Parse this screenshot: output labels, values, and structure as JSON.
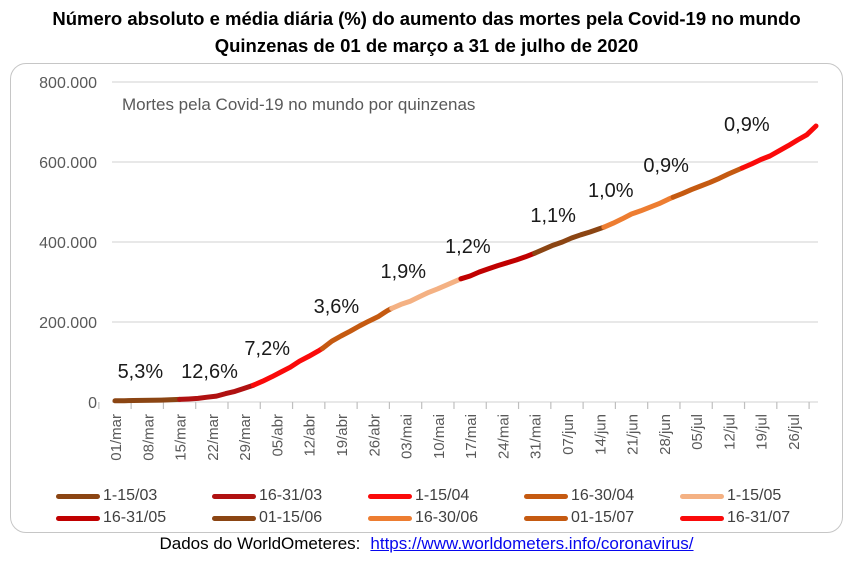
{
  "page": {
    "title_line1": "Número absoluto e média diária (%) do aumento das mortes pela Covid-19 no mundo",
    "title_line2": "Quinzenas de 01 de março a 31 de julho de 2020",
    "footer": {
      "prefix": "Dados do WorldOmeteres:",
      "link_text": "https://www.worldometers.info/coronavirus/"
    }
  },
  "chart_data": {
    "type": "line",
    "title": "Mortes pela Covid-19 no mundo por quinzenas",
    "xlabel": "",
    "ylabel": "",
    "ylim": [
      0,
      800000
    ],
    "grid": true,
    "legend_position": "bottom",
    "colors": {
      "grid": "#D9D9D9",
      "tick": "#BFBFBF",
      "axis_text": "#595959",
      "pct_label_text": "#1A1A1A"
    },
    "y_ticks": [
      {
        "value": 800000,
        "label": "800.000"
      },
      {
        "value": 600000,
        "label": "600.000"
      },
      {
        "value": 400000,
        "label": "400.000"
      },
      {
        "value": 200000,
        "label": "200.000"
      },
      {
        "value": 0,
        "label": "0"
      }
    ],
    "x_ticks": [
      {
        "day": 0,
        "label": "01/mar"
      },
      {
        "day": 7,
        "label": "08/mar"
      },
      {
        "day": 14,
        "label": "15/mar"
      },
      {
        "day": 21,
        "label": "22/mar"
      },
      {
        "day": 28,
        "label": "29/mar"
      },
      {
        "day": 35,
        "label": "05/abr"
      },
      {
        "day": 42,
        "label": "12/abr"
      },
      {
        "day": 49,
        "label": "19/abr"
      },
      {
        "day": 56,
        "label": "26/abr"
      },
      {
        "day": 63,
        "label": "03/mai"
      },
      {
        "day": 70,
        "label": "10/mai"
      },
      {
        "day": 77,
        "label": "17/mai"
      },
      {
        "day": 84,
        "label": "24/mai"
      },
      {
        "day": 91,
        "label": "31/mai"
      },
      {
        "day": 98,
        "label": "07/jun"
      },
      {
        "day": 105,
        "label": "14/jun"
      },
      {
        "day": 112,
        "label": "21/jun"
      },
      {
        "day": 119,
        "label": "28/jun"
      },
      {
        "day": 126,
        "label": "05/jul"
      },
      {
        "day": 133,
        "label": "12/jul"
      },
      {
        "day": 140,
        "label": "19/jul"
      },
      {
        "day": 147,
        "label": "26/jul"
      }
    ],
    "series": [
      {
        "name": "1-15/03",
        "color": "#8B4513",
        "avg_daily_pct": "5,3%",
        "pct_anchor": [
          5.5,
          60000
        ],
        "points": [
          [
            0,
            3050
          ],
          [
            2,
            3350
          ],
          [
            4,
            3650
          ],
          [
            6,
            3900
          ],
          [
            8,
            4300
          ],
          [
            10,
            4750
          ],
          [
            12,
            5400
          ],
          [
            14,
            6500
          ]
        ]
      },
      {
        "name": "16-31/03",
        "color": "#B01111",
        "avg_daily_pct": "12,6%",
        "pct_anchor": [
          20.5,
          60000
        ],
        "points": [
          [
            14,
            6500
          ],
          [
            16,
            7500
          ],
          [
            18,
            9000
          ],
          [
            20,
            12000
          ],
          [
            22,
            14700
          ],
          [
            24,
            21000
          ],
          [
            26,
            26500
          ],
          [
            28,
            33900
          ],
          [
            30,
            42100
          ]
        ]
      },
      {
        "name": "1-15/04",
        "color": "#FA0A0A",
        "avg_daily_pct": "7,2%",
        "pct_anchor": [
          33,
          118000
        ],
        "points": [
          [
            30,
            42100
          ],
          [
            32,
            52000
          ],
          [
            34,
            63000
          ],
          [
            36,
            75000
          ],
          [
            38,
            87000
          ],
          [
            40,
            102000
          ],
          [
            42,
            114000
          ],
          [
            44,
            127000
          ],
          [
            45,
            134000
          ]
        ]
      },
      {
        "name": "16-30/04",
        "color": "#C55A11",
        "avg_daily_pct": "3,6%",
        "pct_anchor": [
          48,
          222000
        ],
        "points": [
          [
            45,
            134000
          ],
          [
            47,
            152000
          ],
          [
            49,
            165000
          ],
          [
            51,
            177000
          ],
          [
            53,
            190000
          ],
          [
            55,
            202000
          ],
          [
            57,
            213000
          ],
          [
            59,
            228000
          ],
          [
            60,
            234000
          ]
        ]
      },
      {
        "name": "1-15/05",
        "color": "#F4B183",
        "avg_daily_pct": "1,9%",
        "pct_anchor": [
          62.5,
          310000
        ],
        "points": [
          [
            60,
            234000
          ],
          [
            62,
            244000
          ],
          [
            64,
            252000
          ],
          [
            66,
            263000
          ],
          [
            68,
            274000
          ],
          [
            70,
            283000
          ],
          [
            72,
            293000
          ],
          [
            74,
            303000
          ],
          [
            75,
            308000
          ]
        ]
      },
      {
        "name": "16-31/05",
        "color": "#C00000",
        "avg_daily_pct": "1,2%",
        "pct_anchor": [
          76.5,
          372000
        ],
        "points": [
          [
            75,
            308000
          ],
          [
            77,
            315000
          ],
          [
            79,
            325000
          ],
          [
            81,
            333000
          ],
          [
            83,
            341000
          ],
          [
            85,
            348000
          ],
          [
            87,
            355000
          ],
          [
            89,
            363000
          ],
          [
            91,
            372000
          ]
        ]
      },
      {
        "name": "01-15/06",
        "color": "#8B4513",
        "avg_daily_pct": "1,1%",
        "pct_anchor": [
          95,
          450000
        ],
        "points": [
          [
            91,
            372000
          ],
          [
            93,
            382000
          ],
          [
            95,
            392000
          ],
          [
            97,
            400000
          ],
          [
            99,
            410000
          ],
          [
            101,
            418000
          ],
          [
            103,
            425000
          ],
          [
            105,
            433000
          ],
          [
            106,
            437000
          ]
        ]
      },
      {
        "name": "16-30/06",
        "color": "#ED7D31",
        "avg_daily_pct": "1,0%",
        "pct_anchor": [
          107.5,
          512000
        ],
        "points": [
          [
            106,
            437000
          ],
          [
            108,
            447000
          ],
          [
            110,
            458000
          ],
          [
            112,
            470000
          ],
          [
            114,
            478000
          ],
          [
            116,
            487000
          ],
          [
            118,
            496000
          ],
          [
            120,
            507000
          ],
          [
            121,
            512000
          ]
        ]
      },
      {
        "name": "01-15/07",
        "color": "#C55A11",
        "avg_daily_pct": "0,9%",
        "pct_anchor": [
          119.5,
          575000
        ],
        "points": [
          [
            121,
            512000
          ],
          [
            123,
            521000
          ],
          [
            125,
            531000
          ],
          [
            127,
            540000
          ],
          [
            129,
            549000
          ],
          [
            131,
            559000
          ],
          [
            133,
            570000
          ],
          [
            135,
            580000
          ],
          [
            136,
            585000
          ]
        ]
      },
      {
        "name": "16-31/07",
        "color": "#FA0A0A",
        "avg_daily_pct": "0,9%",
        "pct_anchor": [
          137,
          677000
        ],
        "points": [
          [
            136,
            585000
          ],
          [
            138,
            595000
          ],
          [
            140,
            606000
          ],
          [
            142,
            615000
          ],
          [
            144,
            628000
          ],
          [
            146,
            641000
          ],
          [
            148,
            655000
          ],
          [
            150,
            668000
          ],
          [
            152,
            690000
          ]
        ]
      }
    ]
  }
}
